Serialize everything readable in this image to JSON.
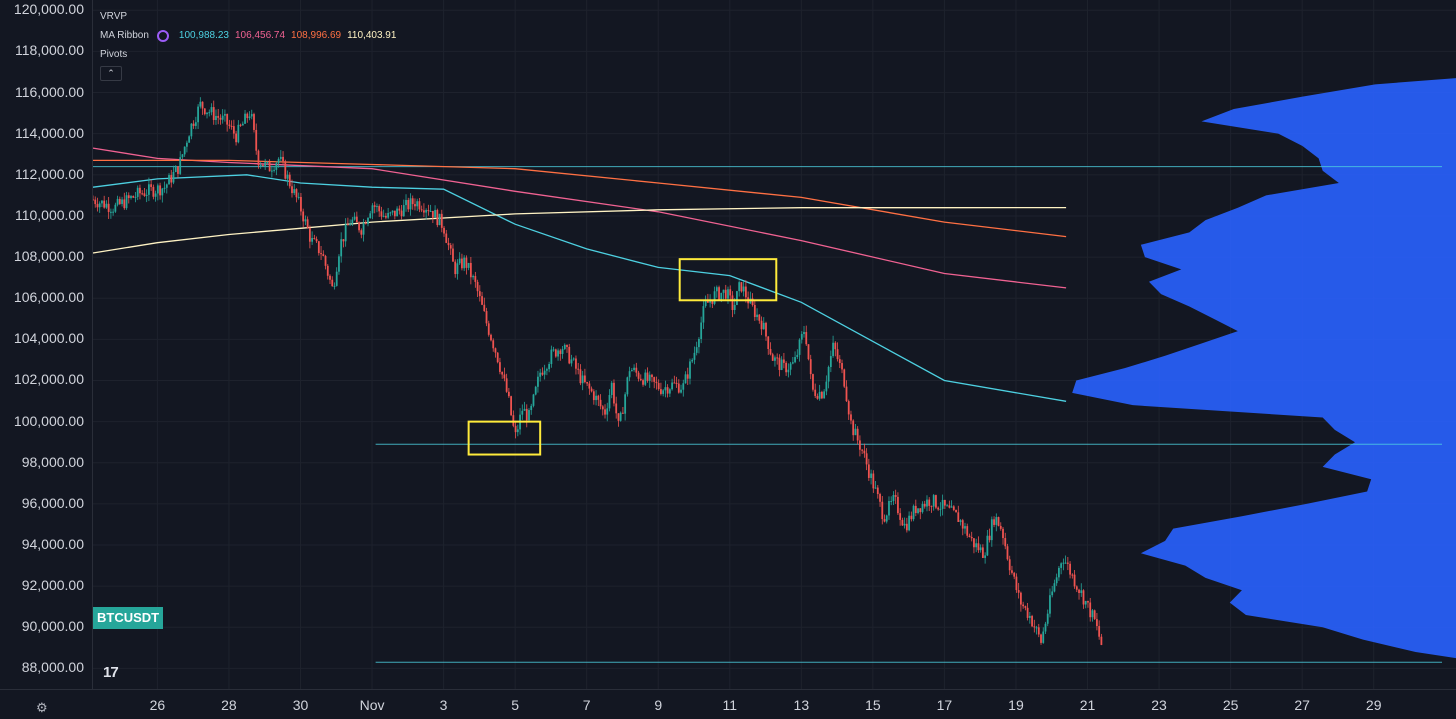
{
  "symbol": "BTCUSDT",
  "logo_text": "17",
  "indicators": {
    "vrvp_label": "VRVP",
    "ma_ribbon_label": "MA Ribbon",
    "ma_values": [
      "100,988.23",
      "106,456.74",
      "108,996.69",
      "110,403.91"
    ],
    "ma_colors": [
      "#4dd0e1",
      "#f06292",
      "#ff7043",
      "#fff3c4"
    ],
    "pivots_label": "Pivots",
    "collapse_icon": "chevron-up-icon"
  },
  "colors": {
    "background": "#131722",
    "grid": "#1e222d",
    "axis_text": "#d1d4dc",
    "up_candle": "#26a69a",
    "down_candle": "#ef5350",
    "volume_profile": "#2962ff",
    "level_lines": "#4dd0e1",
    "highlight_box": "#ffeb3b",
    "symbol_badge": "#26a69a"
  },
  "chart_data": {
    "type": "candlestick",
    "title": "",
    "xlabel": "",
    "ylabel": "",
    "ylim": [
      87000,
      120500
    ],
    "y_ticks": [
      120000,
      118000,
      116000,
      114000,
      112000,
      110000,
      108000,
      106000,
      104000,
      102000,
      100000,
      98000,
      96000,
      94000,
      92000,
      90000,
      88000
    ],
    "y_tick_labels": [
      "120,000.00",
      "118,000.00",
      "116,000.00",
      "114,000.00",
      "112,000.00",
      "110,000.00",
      "108,000.00",
      "106,000.00",
      "104,000.00",
      "102,000.00",
      "100,000.00",
      "98,000.00",
      "96,000.00",
      "94,000.00",
      "92,000.00",
      "90,000.00",
      "88,000.00"
    ],
    "x_ticks": [
      {
        "label": "26",
        "day": 26
      },
      {
        "label": "28",
        "day": 28
      },
      {
        "label": "30",
        "day": 30
      },
      {
        "label": "Nov",
        "day": 32
      },
      {
        "label": "3",
        "day": 34
      },
      {
        "label": "5",
        "day": 36
      },
      {
        "label": "7",
        "day": 38
      },
      {
        "label": "9",
        "day": 40
      },
      {
        "label": "11",
        "day": 42
      },
      {
        "label": "13",
        "day": 44
      },
      {
        "label": "15",
        "day": 46
      },
      {
        "label": "17",
        "day": 48
      },
      {
        "label": "19",
        "day": 50
      },
      {
        "label": "21",
        "day": 52
      },
      {
        "label": "23",
        "day": 54
      },
      {
        "label": "25",
        "day": 56
      },
      {
        "label": "27",
        "day": 58
      },
      {
        "label": "29",
        "day": 60
      }
    ],
    "x_range": [
      24.2,
      62.3
    ],
    "price_path": [
      [
        24.2,
        110800
      ],
      [
        24.8,
        110400
      ],
      [
        25.5,
        111100
      ],
      [
        26.2,
        111400
      ],
      [
        26.6,
        112400
      ],
      [
        26.9,
        114200
      ],
      [
        27.2,
        115400
      ],
      [
        27.6,
        114900
      ],
      [
        27.9,
        114600
      ],
      [
        28.2,
        113900
      ],
      [
        28.6,
        115100
      ],
      [
        28.8,
        112800
      ],
      [
        29.1,
        112300
      ],
      [
        29.4,
        112800
      ],
      [
        29.7,
        111600
      ],
      [
        30.0,
        110400
      ],
      [
        30.3,
        108800
      ],
      [
        30.6,
        108200
      ],
      [
        30.9,
        106400
      ],
      [
        31.1,
        108600
      ],
      [
        31.4,
        109800
      ],
      [
        31.7,
        109400
      ],
      [
        32.0,
        110600
      ],
      [
        32.4,
        109900
      ],
      [
        32.8,
        110300
      ],
      [
        33.2,
        110700
      ],
      [
        33.6,
        110400
      ],
      [
        34.0,
        109500
      ],
      [
        34.3,
        107400
      ],
      [
        34.6,
        107800
      ],
      [
        34.9,
        106600
      ],
      [
        35.2,
        104800
      ],
      [
        35.5,
        103200
      ],
      [
        35.8,
        101200
      ],
      [
        36.0,
        99200
      ],
      [
        36.2,
        100600
      ],
      [
        36.4,
        100200
      ],
      [
        36.7,
        102400
      ],
      [
        37.0,
        103200
      ],
      [
        37.3,
        103700
      ],
      [
        37.6,
        102900
      ],
      [
        37.9,
        101900
      ],
      [
        38.2,
        101300
      ],
      [
        38.5,
        100400
      ],
      [
        38.7,
        101800
      ],
      [
        38.9,
        99600
      ],
      [
        39.2,
        102600
      ],
      [
        39.5,
        102200
      ],
      [
        39.8,
        101900
      ],
      [
        40.1,
        101600
      ],
      [
        40.4,
        101800
      ],
      [
        40.7,
        101700
      ],
      [
        41.0,
        103300
      ],
      [
        41.3,
        105600
      ],
      [
        41.6,
        106200
      ],
      [
        41.9,
        106300
      ],
      [
        42.1,
        105500
      ],
      [
        42.3,
        106700
      ],
      [
        42.6,
        105600
      ],
      [
        42.9,
        104800
      ],
      [
        43.2,
        103100
      ],
      [
        43.5,
        102600
      ],
      [
        43.8,
        102800
      ],
      [
        44.1,
        104600
      ],
      [
        44.3,
        101500
      ],
      [
        44.6,
        101400
      ],
      [
        44.9,
        103700
      ],
      [
        45.2,
        102000
      ],
      [
        45.4,
        99800
      ],
      [
        45.7,
        98600
      ],
      [
        46.0,
        97000
      ],
      [
        46.3,
        95400
      ],
      [
        46.6,
        96200
      ],
      [
        46.9,
        94900
      ],
      [
        47.2,
        95800
      ],
      [
        47.6,
        96200
      ],
      [
        48.0,
        95800
      ],
      [
        48.4,
        95300
      ],
      [
        48.8,
        94100
      ],
      [
        49.1,
        93600
      ],
      [
        49.4,
        95400
      ],
      [
        49.6,
        94800
      ],
      [
        49.8,
        93200
      ],
      [
        50.1,
        91300
      ],
      [
        50.4,
        90500
      ],
      [
        50.7,
        89300
      ],
      [
        51.0,
        91600
      ],
      [
        51.3,
        93500
      ],
      [
        51.6,
        92400
      ],
      [
        51.9,
        91400
      ],
      [
        52.2,
        90300
      ],
      [
        52.4,
        89100
      ]
    ],
    "series": [
      {
        "values": [
          [
            24.2,
            113300
          ],
          [
            26.0,
            112800
          ],
          [
            28.0,
            112600
          ],
          [
            32.0,
            112300
          ],
          [
            36.0,
            111200
          ],
          [
            40.0,
            110200
          ],
          [
            44.0,
            108800
          ],
          [
            48.0,
            107200
          ],
          [
            51.4,
            106500
          ]
        ]
      },
      {
        "values": [
          [
            24.2,
            112700
          ],
          [
            28.0,
            112700
          ],
          [
            32.0,
            112500
          ],
          [
            36.0,
            112300
          ],
          [
            40.0,
            111600
          ],
          [
            44.0,
            110900
          ],
          [
            48.0,
            109700
          ],
          [
            51.4,
            108996.69
          ]
        ]
      },
      {
        "values": [
          [
            24.2,
            111400
          ],
          [
            26.0,
            111800
          ],
          [
            28.5,
            112000
          ],
          [
            30.0,
            111600
          ],
          [
            32.0,
            111400
          ],
          [
            34.0,
            111300
          ],
          [
            36.0,
            109600
          ],
          [
            38.0,
            108400
          ],
          [
            40.0,
            107500
          ],
          [
            42.0,
            107100
          ],
          [
            44.0,
            105800
          ],
          [
            46.0,
            103900
          ],
          [
            48.0,
            102000
          ],
          [
            51.4,
            100988.23
          ]
        ]
      },
      {
        "values": [
          [
            24.2,
            108200
          ],
          [
            26.0,
            108700
          ],
          [
            28.0,
            109100
          ],
          [
            30.0,
            109400
          ],
          [
            32.0,
            109700
          ],
          [
            36.0,
            110100
          ],
          [
            40.0,
            110300
          ],
          [
            44.0,
            110400
          ],
          [
            48.0,
            110400
          ],
          [
            51.4,
            110403.91
          ]
        ]
      }
    ],
    "horizontal_levels": [
      {
        "price": 112400,
        "x_start": 24.2
      },
      {
        "price": 98900,
        "x_start": 32.1
      },
      {
        "price": 88300,
        "x_start": 32.1
      }
    ],
    "highlight_boxes": [
      {
        "x0": 34.7,
        "x1": 36.7,
        "y_top": 100000,
        "y_bottom": 98400
      },
      {
        "x0": 40.6,
        "x1": 43.3,
        "y_top": 107900,
        "y_bottom": 105900
      }
    ],
    "volume_profile": [
      [
        116400,
        0.2
      ],
      [
        115800,
        0.38
      ],
      [
        115200,
        0.55
      ],
      [
        114600,
        0.63
      ],
      [
        114000,
        0.44
      ],
      [
        113400,
        0.38
      ],
      [
        112800,
        0.34
      ],
      [
        112200,
        0.33
      ],
      [
        111600,
        0.29
      ],
      [
        111000,
        0.47
      ],
      [
        110400,
        0.54
      ],
      [
        109800,
        0.62
      ],
      [
        109200,
        0.66
      ],
      [
        108600,
        0.78
      ],
      [
        108000,
        0.77
      ],
      [
        107400,
        0.68
      ],
      [
        106800,
        0.76
      ],
      [
        106200,
        0.73
      ],
      [
        105600,
        0.66
      ],
      [
        105000,
        0.6
      ],
      [
        104400,
        0.54
      ],
      [
        103800,
        0.63
      ],
      [
        103200,
        0.72
      ],
      [
        102600,
        0.82
      ],
      [
        102000,
        0.94
      ],
      [
        101400,
        0.95
      ],
      [
        100800,
        0.8
      ],
      [
        100200,
        0.33
      ],
      [
        99600,
        0.3
      ],
      [
        99000,
        0.25
      ],
      [
        98400,
        0.3
      ],
      [
        97800,
        0.33
      ],
      [
        97200,
        0.21
      ],
      [
        96600,
        0.22
      ],
      [
        96000,
        0.37
      ],
      [
        95400,
        0.53
      ],
      [
        94800,
        0.7
      ],
      [
        94200,
        0.72
      ],
      [
        93600,
        0.78
      ],
      [
        93000,
        0.67
      ],
      [
        92400,
        0.62
      ],
      [
        91800,
        0.53
      ],
      [
        91200,
        0.56
      ],
      [
        90600,
        0.52
      ],
      [
        90000,
        0.33
      ],
      [
        89400,
        0.23
      ],
      [
        88800,
        0.1
      ]
    ]
  }
}
